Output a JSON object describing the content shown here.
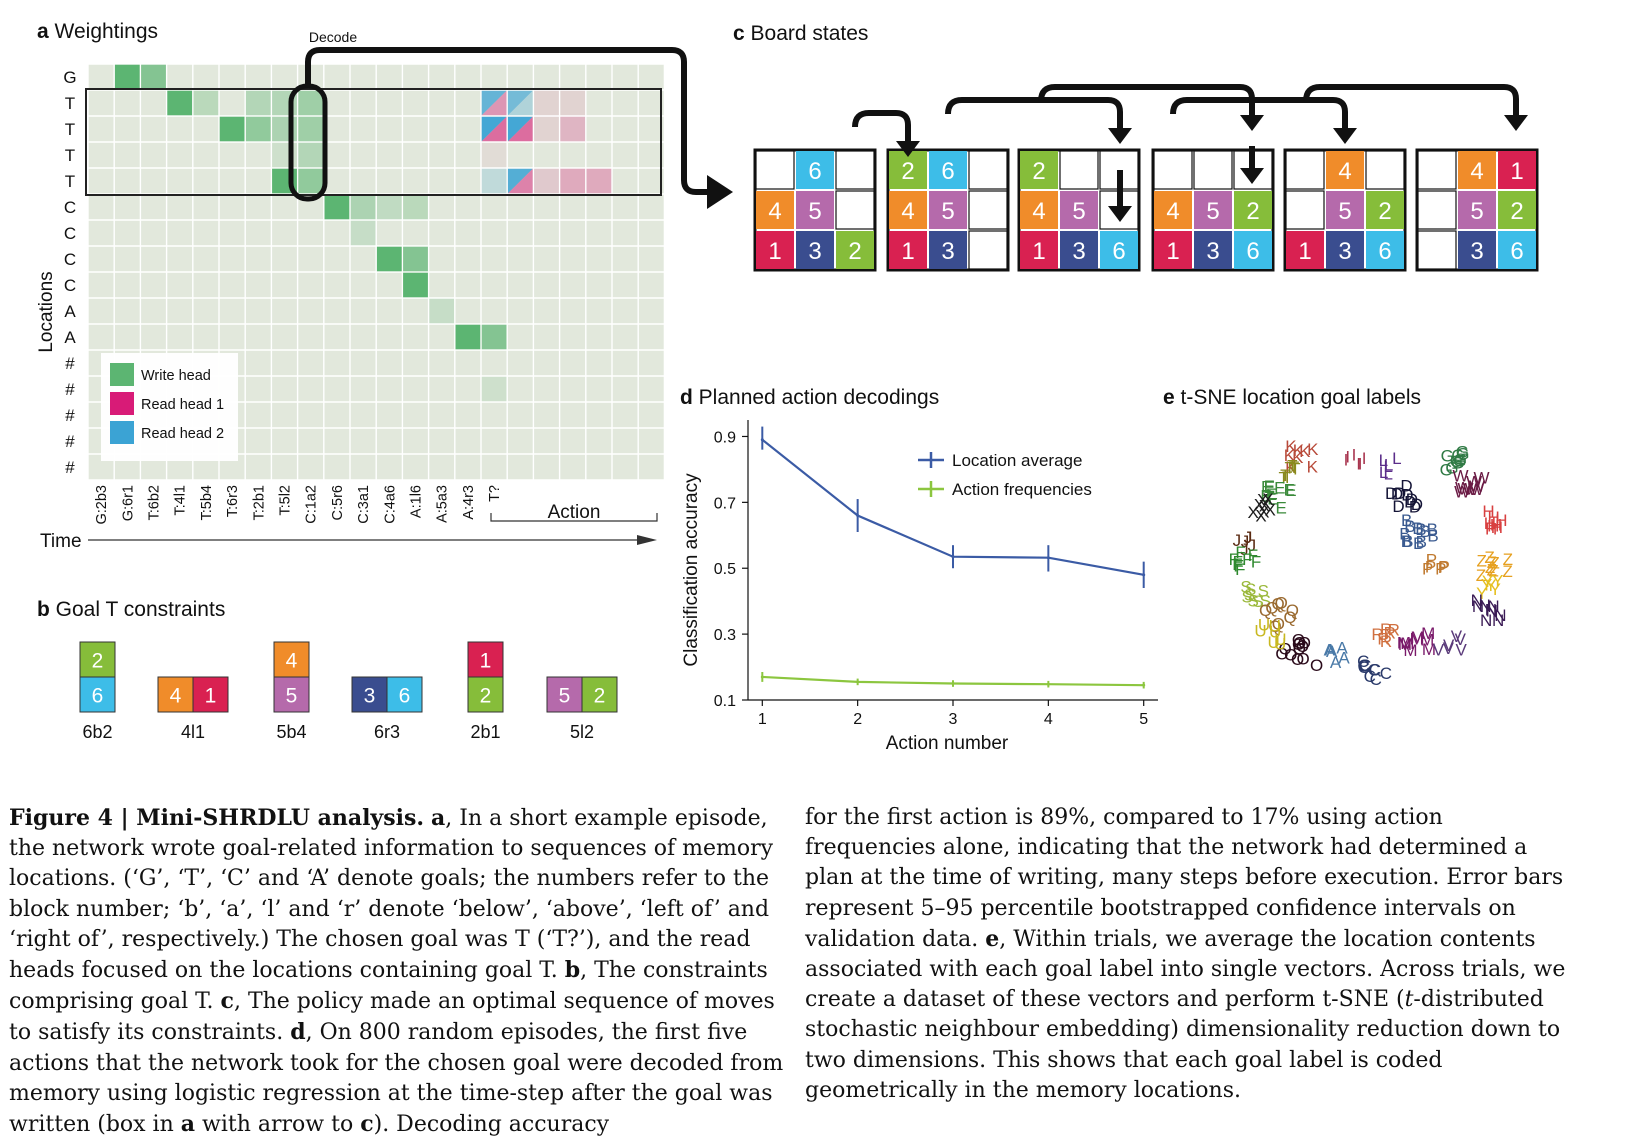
{
  "panels": {
    "a": {
      "letter": "a",
      "title": "Weightings"
    },
    "b": {
      "letter": "b",
      "title": "Goal T constraints"
    },
    "c": {
      "letter": "c",
      "title": "Board states"
    },
    "d": {
      "letter": "d",
      "title": "Planned action decodings"
    },
    "e": {
      "letter": "e",
      "title": "t-SNE location goal labels"
    }
  },
  "weightings": {
    "decode_label": "Decode",
    "y_axis_label": "Locations",
    "x_axis_label": "Time",
    "action_label": "Action",
    "rows": [
      "G",
      "T",
      "T",
      "T",
      "T",
      "C",
      "C",
      "C",
      "C",
      "A",
      "A",
      "#",
      "#",
      "#",
      "#",
      "#"
    ],
    "time_labels": [
      "G:2b3",
      "G:6r1",
      "T:6b2",
      "T:4l1",
      "T:5b4",
      "T:6r3",
      "T:2b1",
      "T:5l2",
      "C:1a2",
      "C:5r6",
      "C:3a1",
      "C:4a6",
      "A:1l6",
      "A:5a3",
      "A:4r3",
      "T?"
    ],
    "legend": [
      "Write head",
      "Read head 1",
      "Read head 2"
    ],
    "colors": {
      "write": "#5cb572",
      "read1": "#d81b77",
      "read2": "#3ba3d4"
    },
    "write_cells": [
      [
        0,
        1,
        1.0
      ],
      [
        0,
        2,
        0.7
      ],
      [
        1,
        3,
        1.0
      ],
      [
        1,
        4,
        0.3
      ],
      [
        1,
        6,
        0.35
      ],
      [
        1,
        7,
        0.35
      ],
      [
        1,
        8,
        0.5
      ],
      [
        2,
        5,
        1.0
      ],
      [
        2,
        6,
        0.6
      ],
      [
        2,
        7,
        0.4
      ],
      [
        2,
        8,
        0.5
      ],
      [
        3,
        7,
        0.15
      ],
      [
        3,
        8,
        0.35
      ],
      [
        4,
        7,
        1.0
      ],
      [
        4,
        8,
        0.6
      ],
      [
        5,
        9,
        1.0
      ],
      [
        5,
        10,
        0.4
      ],
      [
        5,
        11,
        0.25
      ],
      [
        5,
        12,
        0.3
      ],
      [
        6,
        10,
        0.2
      ],
      [
        7,
        11,
        1.0
      ],
      [
        7,
        12,
        0.7
      ],
      [
        8,
        12,
        1.0
      ],
      [
        9,
        13,
        0.2
      ],
      [
        10,
        14,
        1.0
      ],
      [
        10,
        15,
        0.7
      ],
      [
        12,
        15,
        0.15
      ]
    ],
    "read_cells": [
      [
        1,
        15,
        "b",
        "r",
        0.4
      ],
      [
        1,
        16,
        "b",
        "b",
        0.3
      ],
      [
        1,
        17,
        "r",
        null,
        0.1
      ],
      [
        1,
        18,
        "r",
        null,
        0.1
      ],
      [
        2,
        15,
        "b",
        "r",
        0.6
      ],
      [
        2,
        16,
        "b",
        "r",
        0.6
      ],
      [
        2,
        17,
        "r",
        null,
        0.1
      ],
      [
        2,
        18,
        "r",
        null,
        0.25
      ],
      [
        3,
        15,
        "r",
        null,
        0.06
      ],
      [
        4,
        15,
        "b",
        null,
        0.2
      ],
      [
        4,
        16,
        "b",
        "r",
        0.5
      ],
      [
        4,
        17,
        "r",
        null,
        0.15
      ],
      [
        4,
        18,
        "r",
        null,
        0.3
      ],
      [
        4,
        19,
        "r",
        null,
        0.3
      ]
    ]
  },
  "board_states": [
    {
      "grid": [
        [
          "",
          "6",
          ""
        ],
        [
          "4",
          "5",
          ""
        ],
        [
          "1",
          "3",
          "2"
        ]
      ]
    },
    {
      "grid": [
        [
          "2",
          "6",
          ""
        ],
        [
          "4",
          "5",
          ""
        ],
        [
          "1",
          "3",
          ""
        ]
      ]
    },
    {
      "grid": [
        [
          "2",
          "",
          ""
        ],
        [
          "4",
          "5",
          ""
        ],
        [
          "1",
          "3",
          "6"
        ]
      ]
    },
    {
      "grid": [
        [
          "",
          "",
          ""
        ],
        [
          "4",
          "5",
          "2"
        ],
        [
          "1",
          "3",
          "6"
        ]
      ]
    },
    {
      "grid": [
        [
          "",
          "4",
          ""
        ],
        [
          "",
          "5",
          "2"
        ],
        [
          "1",
          "3",
          "6"
        ]
      ]
    },
    {
      "grid": [
        [
          "",
          "4",
          "1"
        ],
        [
          "",
          "5",
          "2"
        ],
        [
          "",
          "3",
          "6"
        ]
      ]
    }
  ],
  "block_colors": {
    "1": "#d92151",
    "2": "#86bd3a",
    "3": "#3a4d8f",
    "4": "#f08c2a",
    "5": "#b56aab",
    "6": "#3dbde8"
  },
  "goal_constraints": [
    {
      "label": "6b2",
      "layout": "vertical",
      "blocks": [
        "2",
        "6"
      ]
    },
    {
      "label": "4l1",
      "layout": "horizontal",
      "blocks": [
        "4",
        "1"
      ]
    },
    {
      "label": "5b4",
      "layout": "vertical",
      "blocks": [
        "4",
        "5"
      ]
    },
    {
      "label": "6r3",
      "layout": "horizontal",
      "blocks": [
        "3",
        "6"
      ]
    },
    {
      "label": "2b1",
      "layout": "vertical",
      "blocks": [
        "1",
        "2"
      ]
    },
    {
      "label": "5l2",
      "layout": "horizontal",
      "blocks": [
        "5",
        "2"
      ]
    }
  ],
  "chart_data": {
    "type": "line",
    "title": "Planned action decodings",
    "xlabel": "Action number",
    "ylabel": "Classification accuracy",
    "x": [
      1,
      2,
      3,
      4,
      5
    ],
    "xlim": [
      0.85,
      5.15
    ],
    "ylim": [
      0.1,
      0.95
    ],
    "yticks": [
      0.1,
      0.3,
      0.5,
      0.7,
      0.9
    ],
    "xticks": [
      1,
      2,
      3,
      4,
      5
    ],
    "legend_position": "top-right",
    "series": [
      {
        "name": "Location average",
        "color": "#3b5ba5",
        "values": [
          0.89,
          0.66,
          0.535,
          0.532,
          0.48
        ],
        "error": [
          [
            0.86,
            0.93
          ],
          [
            0.61,
            0.71
          ],
          [
            0.5,
            0.57
          ],
          [
            0.49,
            0.57
          ],
          [
            0.44,
            0.52
          ]
        ]
      },
      {
        "name": "Action frequencies",
        "color": "#8cc63f",
        "values": [
          0.17,
          0.155,
          0.15,
          0.148,
          0.145
        ],
        "error": [
          [
            0.155,
            0.185
          ],
          [
            0.145,
            0.165
          ],
          [
            0.14,
            0.16
          ],
          [
            0.138,
            0.158
          ],
          [
            0.135,
            0.155
          ]
        ]
      }
    ]
  },
  "tsne": {
    "groups": [
      {
        "letter": "G",
        "color": "#2f7a44",
        "x": 1458,
        "y": 467,
        "spread": 14,
        "count": 10
      },
      {
        "letter": "K",
        "color": "#b84a3a",
        "x": 1300,
        "y": 462,
        "spread": 14,
        "count": 8
      },
      {
        "letter": "T",
        "color": "#8a8a1e",
        "x": 1293,
        "y": 476,
        "spread": 11,
        "count": 7
      },
      {
        "letter": "I",
        "color": "#a8344e",
        "x": 1355,
        "y": 467,
        "spread": 10,
        "count": 6
      },
      {
        "letter": "L",
        "color": "#5b2d8a",
        "x": 1390,
        "y": 472,
        "spread": 14,
        "count": 6
      },
      {
        "letter": "D",
        "color": "#141436",
        "x": 1405,
        "y": 502,
        "spread": 14,
        "count": 10
      },
      {
        "letter": "W",
        "color": "#6a1a44",
        "x": 1472,
        "y": 488,
        "spread": 12,
        "count": 9
      },
      {
        "letter": "E",
        "color": "#3a8a3a",
        "x": 1280,
        "y": 505,
        "spread": 16,
        "count": 10
      },
      {
        "letter": "X",
        "color": "#1c1c1c",
        "x": 1265,
        "y": 513,
        "spread": 12,
        "count": 8
      },
      {
        "letter": "B",
        "color": "#3a5a90",
        "x": 1420,
        "y": 537,
        "spread": 16,
        "count": 12
      },
      {
        "letter": "H",
        "color": "#d84040",
        "x": 1490,
        "y": 525,
        "spread": 12,
        "count": 8
      },
      {
        "letter": "J",
        "color": "#5a2a12",
        "x": 1245,
        "y": 548,
        "spread": 9,
        "count": 6
      },
      {
        "letter": "F",
        "color": "#2f8a2f",
        "x": 1245,
        "y": 567,
        "spread": 12,
        "count": 9
      },
      {
        "letter": "Z",
        "color": "#e6a020",
        "x": 1495,
        "y": 575,
        "spread": 16,
        "count": 10
      },
      {
        "letter": "Y",
        "color": "#e6c020",
        "x": 1490,
        "y": 595,
        "spread": 11,
        "count": 6
      },
      {
        "letter": "S",
        "color": "#9ab83a",
        "x": 1256,
        "y": 598,
        "spread": 12,
        "count": 8
      },
      {
        "letter": "P",
        "color": "#c07a30",
        "x": 1435,
        "y": 571,
        "spread": 10,
        "count": 6
      },
      {
        "letter": "N",
        "color": "#3a1a55",
        "x": 1490,
        "y": 615,
        "spread": 16,
        "count": 9
      },
      {
        "letter": "Q",
        "color": "#9a6a30",
        "x": 1280,
        "y": 620,
        "spread": 16,
        "count": 8
      },
      {
        "letter": "O",
        "color": "#2a0a1a",
        "x": 1300,
        "y": 660,
        "spread": 18,
        "count": 12
      },
      {
        "letter": "U",
        "color": "#c8b820",
        "x": 1272,
        "y": 640,
        "spread": 12,
        "count": 7
      },
      {
        "letter": "A",
        "color": "#4a7aa8",
        "x": 1340,
        "y": 660,
        "spread": 11,
        "count": 6
      },
      {
        "letter": "C",
        "color": "#2a3a6a",
        "x": 1375,
        "y": 675,
        "spread": 14,
        "count": 10
      },
      {
        "letter": "R",
        "color": "#d07040",
        "x": 1387,
        "y": 640,
        "spread": 12,
        "count": 6
      },
      {
        "letter": "M",
        "color": "#7a1a6a",
        "x": 1420,
        "y": 650,
        "spread": 16,
        "count": 9
      },
      {
        "letter": "V",
        "color": "#5a3a7a",
        "x": 1450,
        "y": 650,
        "spread": 12,
        "count": 6
      }
    ]
  },
  "caption": {
    "left": [
      {
        "t": "Figure 4 | Mini-SHRDLU analysis.",
        "b": true
      },
      {
        "t": " "
      },
      {
        "t": "a",
        "b": true
      },
      {
        "t": ", In a short example episode, the network wrote goal-related information to sequences of memory locations. (‘G’, ‘T’, ‘C’ and ‘A’ denote goals; the numbers refer to the block number; ‘b’, ‘a’, ‘l’ and ‘r’ denote ‘below’, ‘above’, ‘left of’ and ‘right of’, respectively.) The chosen goal was T (‘T?’), and the read heads focused on the locations containing goal T. "
      },
      {
        "t": "b",
        "b": true
      },
      {
        "t": ", The constraints comprising goal T. "
      },
      {
        "t": "c",
        "b": true
      },
      {
        "t": ", The policy made an optimal sequence of moves to satisfy its constraints. "
      },
      {
        "t": "d",
        "b": true
      },
      {
        "t": ", On 800 random episodes, the first five actions that the network took for the chosen goal were decoded from memory using logistic regression at the time-step after the goal was written (box in "
      },
      {
        "t": "a",
        "b": true
      },
      {
        "t": " with arrow to "
      },
      {
        "t": "c",
        "b": true
      },
      {
        "t": "). Decoding accuracy"
      }
    ],
    "right": [
      {
        "t": "for the first action is 89%, compared to 17% using action frequencies alone, indicating that the network had determined a plan at the time of writing, many steps before execution. Error bars represent 5–95 percentile bootstrapped confidence intervals on validation data. "
      },
      {
        "t": "e",
        "b": true
      },
      {
        "t": ", Within trials, we average the location contents associated with each goal label into single vectors. Across trials, we create a dataset of these vectors and perform t-SNE ("
      },
      {
        "t": "t",
        "i": true
      },
      {
        "t": "-distributed stochastic neighbour embedding) dimensionality reduction down to two dimensions. This shows that each goal label is coded geometrically in the memory locations."
      }
    ]
  }
}
